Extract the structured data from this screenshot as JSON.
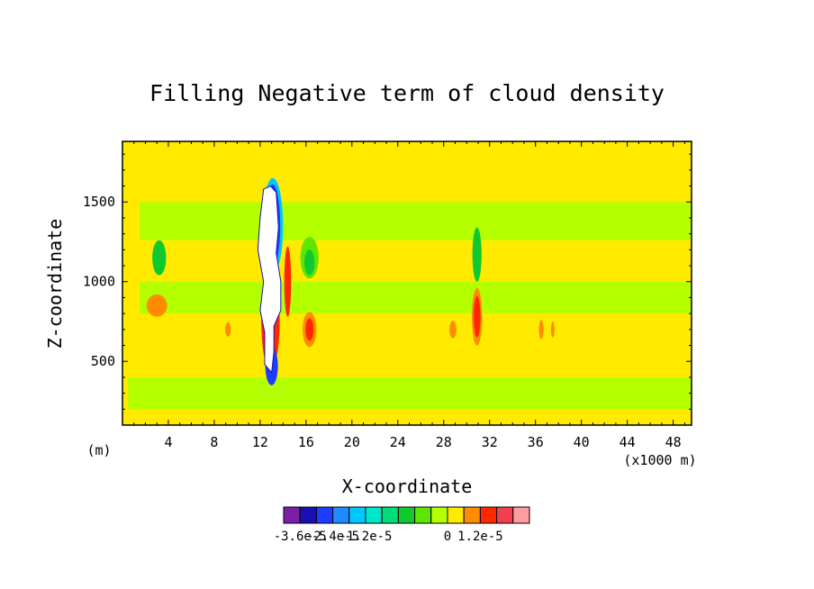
{
  "chart_data": {
    "type": "heatmap",
    "title": "Filling Negative term of cloud density",
    "xlabel": "X-coordinate",
    "ylabel": "Z-coordinate",
    "x_unit_left": "(m)",
    "x_unit_right": "(x1000 m)",
    "xlim": [
      0,
      49.6
    ],
    "ylim": [
      100,
      1880
    ],
    "x_ticks": [
      4,
      8,
      12,
      16,
      20,
      24,
      28,
      32,
      36,
      40,
      44,
      48
    ],
    "x_tick_labels": [
      "4",
      "8",
      "12",
      "16",
      "20",
      "24",
      "28",
      "32",
      "36",
      "40",
      "44",
      "48"
    ],
    "y_ticks": [
      500,
      1000,
      1500
    ],
    "y_tick_labels": [
      "500",
      "1000",
      "1500"
    ],
    "colorbar": {
      "colors": [
        "#7a1fa6",
        "#1a0fb4",
        "#1e3cff",
        "#1e8cff",
        "#00c8ff",
        "#00e6c8",
        "#00dc78",
        "#10c830",
        "#5ee600",
        "#b4ff00",
        "#ffea00",
        "#ff8c00",
        "#ff2800",
        "#f04050",
        "#ff9ca0"
      ],
      "tick_labels": [
        "-3.6e-5",
        "-2.4e-5",
        "-1.2e-5",
        "0",
        "1.2e-5"
      ]
    },
    "background_color": "#ffea00",
    "features": [
      {
        "kind": "band",
        "x": [
          1.5,
          49.6
        ],
        "z": [
          1260,
          1500
        ],
        "color": "#b4ff00"
      },
      {
        "kind": "band",
        "x": [
          1.5,
          49.6
        ],
        "z": [
          800,
          1000
        ],
        "color": "#b4ff00"
      },
      {
        "kind": "band",
        "x": [
          0.5,
          49.6
        ],
        "z": [
          200,
          400
        ],
        "color": "#b4ff00"
      },
      {
        "kind": "blob",
        "x": 3.2,
        "z": 1150,
        "rx": 0.6,
        "rz": 110,
        "color": "#10c830"
      },
      {
        "kind": "blob",
        "x": 3.0,
        "z": 850,
        "rx": 0.9,
        "rz": 70,
        "color": "#ff8c00"
      },
      {
        "kind": "blob",
        "x": 16.3,
        "z": 1150,
        "rx": 0.8,
        "rz": 130,
        "color": "#5ee600"
      },
      {
        "kind": "blob",
        "x": 16.3,
        "z": 1120,
        "rx": 0.45,
        "rz": 80,
        "color": "#10c830"
      },
      {
        "kind": "blob",
        "x": 16.3,
        "z": 700,
        "rx": 0.6,
        "rz": 110,
        "color": "#ff8c00"
      },
      {
        "kind": "blob",
        "x": 16.3,
        "z": 700,
        "rx": 0.35,
        "rz": 70,
        "color": "#ff2800"
      },
      {
        "kind": "blob",
        "x": 30.9,
        "z": 1170,
        "rx": 0.4,
        "rz": 170,
        "color": "#10c830"
      },
      {
        "kind": "blob",
        "x": 30.9,
        "z": 780,
        "rx": 0.45,
        "rz": 180,
        "color": "#ff8c00"
      },
      {
        "kind": "blob",
        "x": 30.9,
        "z": 780,
        "rx": 0.3,
        "rz": 130,
        "color": "#ff2800"
      },
      {
        "kind": "blob",
        "x": 9.2,
        "z": 700,
        "rx": 0.25,
        "rz": 45,
        "color": "#ff8c00"
      },
      {
        "kind": "blob",
        "x": 28.8,
        "z": 700,
        "rx": 0.3,
        "rz": 55,
        "color": "#ff8c00"
      },
      {
        "kind": "blob",
        "x": 36.5,
        "z": 700,
        "rx": 0.2,
        "rz": 60,
        "color": "#ff8c00"
      },
      {
        "kind": "blob",
        "x": 37.5,
        "z": 700,
        "rx": 0.15,
        "rz": 50,
        "color": "#ff8c00"
      },
      {
        "kind": "blob",
        "x": 14.4,
        "z": 1000,
        "rx": 0.3,
        "rz": 220,
        "color": "#ff2800"
      },
      {
        "kind": "blob",
        "x": 13.1,
        "z": 1350,
        "rx": 0.9,
        "rz": 300,
        "color": "#00c8ff"
      },
      {
        "kind": "blob",
        "x": 13.1,
        "z": 1350,
        "rx": 0.65,
        "rz": 260,
        "color": "#1e3cff"
      },
      {
        "kind": "blob",
        "x": 12.9,
        "z": 750,
        "rx": 0.8,
        "rz": 300,
        "color": "#ff2800"
      },
      {
        "kind": "blob",
        "x": 13.0,
        "z": 470,
        "rx": 0.55,
        "rz": 120,
        "color": "#1e3cff"
      }
    ],
    "void_outline": [
      [
        12.3,
        1580
      ],
      [
        12.9,
        1600
      ],
      [
        13.4,
        1560
      ],
      [
        13.6,
        1340
      ],
      [
        13.4,
        1180
      ],
      [
        13.8,
        1000
      ],
      [
        13.8,
        820
      ],
      [
        13.2,
        720
      ],
      [
        13.2,
        560
      ],
      [
        13.0,
        430
      ],
      [
        12.4,
        480
      ],
      [
        12.4,
        680
      ],
      [
        12.0,
        820
      ],
      [
        12.3,
        1000
      ],
      [
        11.8,
        1200
      ],
      [
        12.0,
        1400
      ]
    ],
    "grid": false,
    "legend": "bottom"
  }
}
